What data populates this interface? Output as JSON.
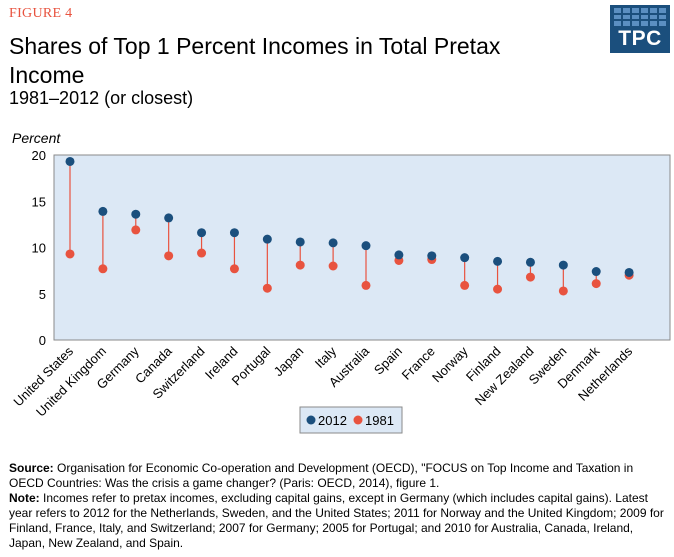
{
  "figure_label": "FIGURE 4",
  "logo": {
    "text": "TPC",
    "color": "#1b4f7d"
  },
  "chart_data": {
    "type": "dot-plot",
    "title": "Shares of Top 1 Percent Incomes in Total Pretax Income",
    "subtitle": "1981–2012 (or closest)",
    "ylabel": "Percent",
    "ylim": [
      0,
      20
    ],
    "yticks": [
      0,
      5,
      10,
      15,
      20
    ],
    "grid": false,
    "legend_position": "bottom-center",
    "categories": [
      "United States",
      "United Kingdom",
      "Germany",
      "Canada",
      "Switzerland",
      "Ireland",
      "Portugal",
      "Japan",
      "Italy",
      "Australia",
      "Spain",
      "France",
      "Norway",
      "Finland",
      "New Zealand",
      "Sweden",
      "Denmark",
      "Netherlands"
    ],
    "series": [
      {
        "name": "2012",
        "color": "#1b4f7d",
        "values": [
          19.3,
          13.9,
          13.6,
          13.2,
          11.6,
          11.6,
          10.9,
          10.6,
          10.5,
          10.2,
          9.2,
          9.1,
          8.9,
          8.5,
          8.4,
          8.1,
          7.4,
          7.3
        ]
      },
      {
        "name": "1981",
        "color": "#e8533f",
        "values": [
          9.3,
          7.7,
          11.9,
          9.1,
          9.4,
          7.7,
          5.6,
          8.1,
          8.0,
          5.9,
          8.6,
          8.7,
          5.9,
          5.5,
          6.8,
          5.3,
          6.1,
          7.0
        ]
      }
    ]
  },
  "footer": {
    "source_label": "Source:",
    "source_text": " Organisation for Economic Co-operation and Development (OECD), \"FOCUS on Top Income and Taxation in OECD Countries: Was the crisis a game changer? (Paris: OECD, 2014), figure 1.",
    "note_label": "Note:",
    "note_text": " Incomes refer to pretax incomes, excluding capital gains, except in Germany (which includes capital gains). Latest year refers to 2012 for the Netherlands, Sweden, and the United States; 2011 for Norway and the United Kingdom; 2009 for Finland, France, Italy, and Switzerland; 2007 for Germany; 2005 for Portugal; and 2010 for Australia, Canada, Ireland, Japan, New Zealand, and Spain."
  }
}
